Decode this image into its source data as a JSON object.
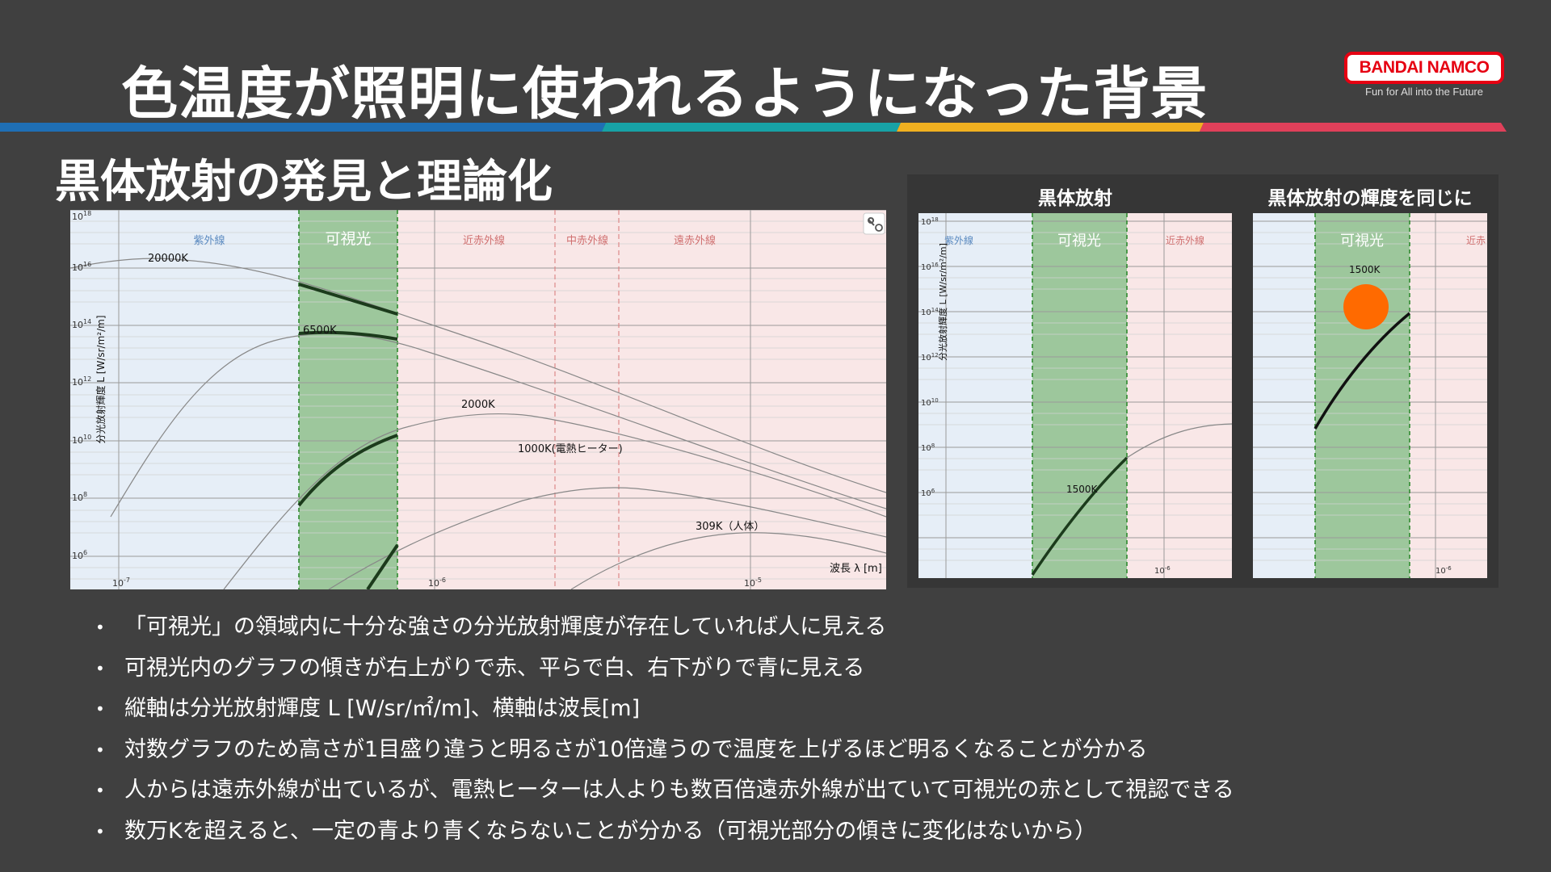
{
  "title": "色温度が照明に使われるようになった背景",
  "subtitle": "黒体放射の発見と理論化",
  "logo": {
    "name": "BANDAI NAMCO",
    "tagline": "Fun for All into the Future",
    "color": "#e60012"
  },
  "stripe_colors": [
    "#1f6fb5",
    "#17a2a6",
    "#f0b020",
    "#e0405a"
  ],
  "chart_main": {
    "bands": {
      "uv": "紫外線",
      "visible": "可視光",
      "nir": "近赤外線",
      "mir": "中赤外線",
      "fir": "遠赤外線"
    },
    "ylabel": "分光放射輝度 L [W/sr/m²/m]",
    "xlabel": "波長 λ [m]",
    "curve_labels": {
      "t20000": "20000K",
      "t6500": "6500K",
      "t2000": "2000K",
      "t1000": "1000K(電熱ヒーター)",
      "t309": "309K（人体）"
    },
    "tool_icon": "wrench-settings-icon"
  },
  "chart_data": [
    {
      "type": "line",
      "x_scale": "log",
      "y_scale": "log",
      "xlim": [
        6e-08,
        1.7e-05
      ],
      "ylim": [
        100000.0,
        1e+18
      ],
      "x_ticks": [
        "10⁻⁷",
        "10⁻⁶",
        "10⁻⁵"
      ],
      "y_ticks": [
        "10¹⁸",
        "10¹⁶",
        "10¹⁴",
        "10¹²",
        "10¹⁰",
        "10⁸",
        "10⁶"
      ],
      "xlabel": "波長 λ [m]",
      "ylabel": "分光放射輝度 L [W/sr/m²/m]",
      "regions": [
        {
          "label": "紫外線",
          "from": 1e-08,
          "to": 3.8e-07
        },
        {
          "label": "可視光",
          "from": 3.8e-07,
          "to": 7.8e-07
        },
        {
          "label": "近赤外線",
          "from": 7.8e-07,
          "to": 2.5e-06
        },
        {
          "label": "中赤外線",
          "from": 2.5e-06,
          "to": 4e-06
        },
        {
          "label": "遠赤外線",
          "from": 4e-06,
          "to": 0.001
        }
      ],
      "series": [
        {
          "name": "20000K",
          "temperature_K": 20000
        },
        {
          "name": "6500K",
          "temperature_K": 6500
        },
        {
          "name": "2000K",
          "temperature_K": 2000
        },
        {
          "name": "1000K(電熱ヒーター)",
          "temperature_K": 1000
        },
        {
          "name": "309K（人体）",
          "temperature_K": 309
        }
      ]
    },
    {
      "type": "line",
      "title": "黒体放射",
      "x_scale": "log",
      "y_scale": "log",
      "xlim": [
        9e-08,
        2.5e-06
      ],
      "ylim": [
        100000.0,
        1e+18
      ],
      "x_ticks": [
        "10⁻⁶"
      ],
      "y_ticks": [
        "10¹⁸",
        "10¹⁶",
        "10¹⁴",
        "10¹²",
        "10¹⁰",
        "10⁸",
        "10⁶"
      ],
      "ylabel": "分光放射輝度 L [W/sr/m²/m]",
      "regions": [
        {
          "label": "紫外線",
          "from": 1e-08,
          "to": 3.8e-07
        },
        {
          "label": "可視光",
          "from": 3.8e-07,
          "to": 7.8e-07
        },
        {
          "label": "近赤外線",
          "from": 7.8e-07,
          "to": 2.5e-06
        }
      ],
      "series": [
        {
          "name": "1500K",
          "temperature_K": 1500
        }
      ]
    },
    {
      "type": "line",
      "title": "黒体放射の輝度を同じに",
      "x_scale": "log",
      "y_scale": "log",
      "xlim": [
        2e-07,
        1.5e-06
      ],
      "ylim": [
        100000.0,
        1e+18
      ],
      "x_ticks": [
        "10⁻⁶"
      ],
      "regions": [
        {
          "label": "紫外線",
          "from": 1e-08,
          "to": 3.8e-07
        },
        {
          "label": "可視光",
          "from": 3.8e-07,
          "to": 7.8e-07
        },
        {
          "label": "近赤外線",
          "from": 7.8e-07,
          "to": 2.5e-06
        }
      ],
      "series": [
        {
          "name": "1500K",
          "temperature_K": 1500,
          "shown": "visible range only, scaled"
        }
      ],
      "color_swatch": "#ff6a00"
    }
  ],
  "panel_a": {
    "title": "黒体放射",
    "bands": {
      "uv": "紫外線",
      "visible": "可視光",
      "nir": "近赤外線"
    },
    "curve_label": "1500K"
  },
  "panel_b": {
    "title": "黒体放射の輝度を同じに",
    "bands": {
      "visible": "可視光",
      "nir": "近赤"
    },
    "curve_label": "1500K"
  },
  "colors": {
    "uv_band": "#e6eef7",
    "visible_band": "#9dc79c",
    "ir_band": "#f9e7e7",
    "curve_highlight": "#1c3b1c",
    "swatch": "#ff6a00"
  },
  "bullet_marker": "•",
  "bullets": [
    "「可視光」の領域内に十分な強さの分光放射輝度が存在していれば人に見える",
    "可視光内のグラフの傾きが右上がりで赤、平らで白、右下がりで青に見える",
    "縦軸は分光放射輝度 L [W/sr/㎡/m]、横軸は波長[m]",
    "対数グラフのため高さが1目盛り違うと明るさが10倍違うので温度を上げるほど明るくなることが分かる",
    "人からは遠赤外線が出ているが、電熱ヒーターは人よりも数百倍遠赤外線が出ていて可視光の赤として視認できる",
    "数万Kを超えると、一定の青より青くならないことが分かる（可視光部分の傾きに変化はないから）"
  ]
}
